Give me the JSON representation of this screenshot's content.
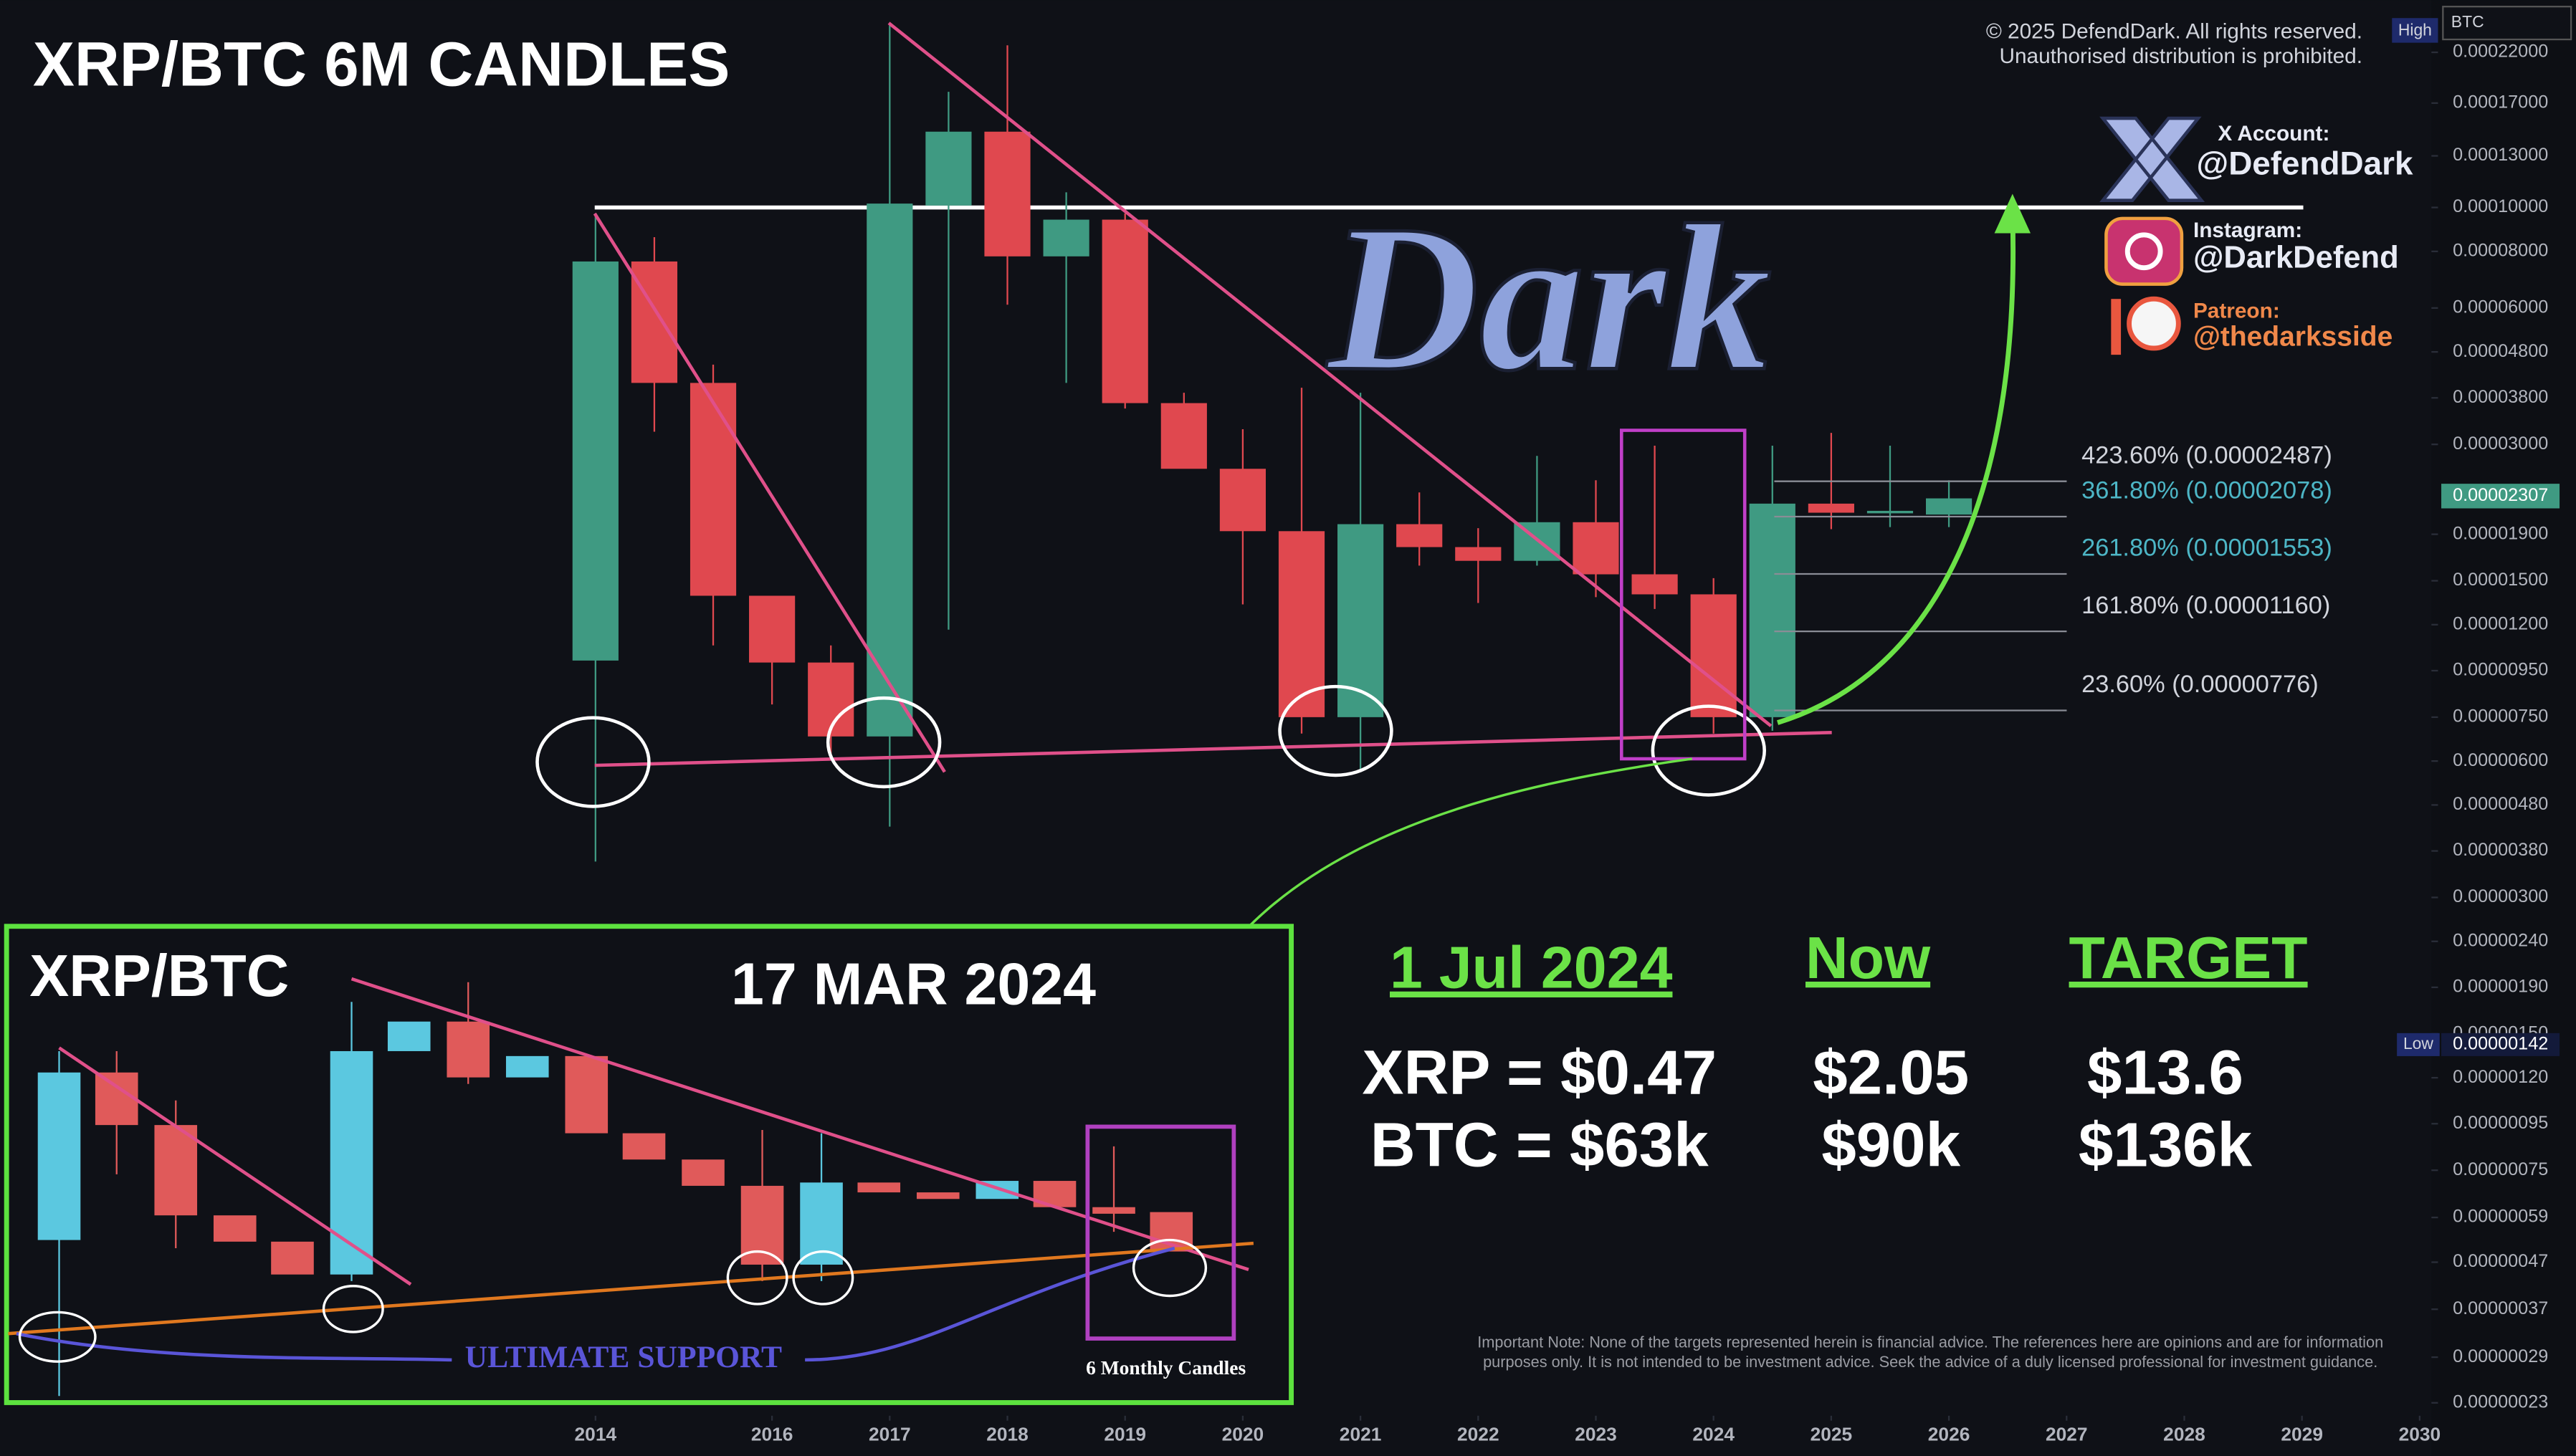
{
  "chart_data": {
    "type": "candlestick",
    "title": "XRP/BTC 6M CANDLES",
    "x": [
      2014.5,
      2015,
      2015.5,
      2016,
      2016.5,
      2017,
      2017.5,
      2018,
      2018.5,
      2019,
      2019.5,
      2020,
      2020.5,
      2021,
      2021.5,
      2022,
      2022.5,
      2023,
      2023.5,
      2024,
      2024.5,
      2025,
      2025.5,
      2026
    ],
    "open": [
      1e-05,
      7.6e-05,
      4.1e-05,
      1.39e-05,
      9.9e-06,
      6.8e-06,
      0.000101,
      0.000147,
      7.8e-05,
      9.4e-05,
      3.7e-05,
      2.65e-05,
      1.93e-05,
      7.5e-06,
      2e-05,
      1.78e-05,
      1.66e-05,
      2.02e-05,
      1.55e-05,
      1.4e-05,
      7.5e-06,
      2.22e-05,
      2.12e-05,
      2.1e-05
    ],
    "high": [
      9.7e-05,
      8.6e-05,
      4.5e-05,
      1.39e-05,
      1.08e-05,
      0.000253,
      0.00018,
      0.000228,
      0.000108,
      9.7e-05,
      3.9e-05,
      3.24e-05,
      4e-05,
      3.9e-05,
      2.35e-05,
      1.96e-05,
      2.83e-05,
      2.5e-05,
      2.98e-05,
      1.52e-05,
      2.98e-05,
      3.18e-05,
      2.98e-05,
      2.5e-05
    ],
    "low": [
      3.6e-06,
      3.2e-05,
      1.08e-05,
      8e-06,
      6.2e-06,
      4.3e-06,
      1.17e-05,
      6.1e-05,
      4.1e-05,
      3.6e-05,
      2.7e-05,
      1.33e-05,
      6.9e-06,
      5.7e-06,
      1.62e-05,
      1.34e-05,
      1.62e-05,
      1.38e-05,
      1.3e-05,
      6.9e-06,
      7e-06,
      1.95e-05,
      1.97e-05,
      1.97e-05
    ],
    "close": [
      7.6e-05,
      4.1e-05,
      1.39e-05,
      9.9e-06,
      6.8e-06,
      0.000102,
      0.000147,
      7.8e-05,
      9.4e-05,
      3.7e-05,
      2.65e-05,
      1.93e-05,
      7.5e-06,
      2e-05,
      1.78e-05,
      1.66e-05,
      2.02e-05,
      1.55e-05,
      1.4e-05,
      7.5e-06,
      2.22e-05,
      2.12e-05,
      2.14e-05,
      2.28e-05
    ],
    "up_color": "#3f9a82",
    "down_color": "#e0484f",
    "log_y": true,
    "grid": false,
    "xlim": [
      2009.44,
      2030.1
    ],
    "xticks": [
      {
        "value": 2014.5,
        "label": "2014"
      },
      2016,
      2017,
      2018,
      2019,
      2020,
      2021,
      2022,
      2023,
      2024,
      2025,
      2026,
      2027,
      2028,
      2029,
      2030
    ],
    "ylim": [
      2.19e-07,
      0.000287
    ],
    "yticks": [
      {
        "value": 0.00022,
        "label": "0.00022000"
      },
      {
        "value": 0.00017,
        "label": "0.00017000"
      },
      {
        "value": 0.00013,
        "label": "0.00013000"
      },
      {
        "value": 0.0001,
        "label": "0.00010000"
      },
      {
        "value": 8e-05,
        "label": "0.00008000"
      },
      {
        "value": 6e-05,
        "label": "0.00006000"
      },
      {
        "value": 4.8e-05,
        "label": "0.00004800"
      },
      {
        "value": 3.8e-05,
        "label": "0.00003800"
      },
      {
        "value": 3e-05,
        "label": "0.00003000"
      },
      {
        "value": 1.9e-05,
        "label": "0.00001900"
      },
      {
        "value": 1.5e-05,
        "label": "0.00001500"
      },
      {
        "value": 1.2e-05,
        "label": "0.00001200"
      },
      {
        "value": 9.5e-06,
        "label": "0.00000950"
      },
      {
        "value": 7.5e-06,
        "label": "0.00000750"
      },
      {
        "value": 6e-06,
        "label": "0.00000600"
      },
      {
        "value": 4.8e-06,
        "label": "0.00000480"
      },
      {
        "value": 3.8e-06,
        "label": "0.00000380"
      },
      {
        "value": 3e-06,
        "label": "0.00000300"
      },
      {
        "value": 2.4e-06,
        "label": "0.00000240"
      },
      {
        "value": 1.9e-06,
        "label": "0.00000190"
      },
      {
        "value": 1.5e-06,
        "label": "0.00000150"
      },
      {
        "value": 1.2e-06,
        "label": "0.00000120"
      },
      {
        "value": 9.5e-07,
        "label": "0.00000095"
      },
      {
        "value": 7.5e-07,
        "label": "0.00000075"
      },
      {
        "value": 5.9e-07,
        "label": "0.00000059"
      },
      {
        "value": 4.7e-07,
        "label": "0.00000047"
      },
      {
        "value": 3.7e-07,
        "label": "0.00000037"
      },
      {
        "value": 2.9e-07,
        "label": "0.00000029"
      },
      {
        "value": 2.3e-07,
        "label": "0.00000023"
      }
    ],
    "fib_levels": [
      {
        "value": 2.487e-05,
        "label": "423.60% (0.00002487)",
        "color": "#d1d4dc"
      },
      {
        "value": 2.078e-05,
        "label": "361.80% (0.00002078)",
        "color": "#4db6c6"
      },
      {
        "value": 1.553e-05,
        "label": "261.80% (0.00001553)",
        "color": "#4db6c6"
      },
      {
        "value": 1.16e-05,
        "label": "161.80% (0.00001160)",
        "color": "#d1d4dc"
      },
      {
        "value": 7.76e-06,
        "label": "23.60% (0.00000776)",
        "color": "#d1d4dc"
      }
    ],
    "resistance_level": 0.0001,
    "current_price": {
      "value": 2.307e-05,
      "label": "0.00002307"
    },
    "low_marker": {
      "tag": "Low",
      "value": 1.42e-06,
      "label": "0.00000142"
    },
    "high_tag": "High",
    "symbol": "BTC"
  },
  "watermark": "Dark",
  "copyright": [
    "© 2025 DefendDark. All rights reserved.",
    "Unauthorised distribution is prohibited."
  ],
  "socials": [
    {
      "label": "X Account:",
      "handle": "@DefendDark"
    },
    {
      "label": "Instagram:",
      "handle": "@DarkDefend"
    },
    {
      "label": "Patreon:",
      "handle": "@thedarksside"
    }
  ],
  "inset": {
    "title": "XRP/BTC",
    "date": "17 MAR 2024",
    "support_label": "ULTIMATE SUPPORT",
    "box_label": "6 Monthly Candles"
  },
  "comparison": {
    "headers": [
      "1 Jul 2024",
      "Now",
      "TARGET"
    ],
    "rows": [
      [
        "XRP = $0.47",
        "$2.05",
        "$13.6"
      ],
      [
        "BTC = $63k",
        "$90k",
        "$136k"
      ]
    ]
  },
  "disclaimer": [
    "Important Note: None of the targets represented herein is financial advice. The references here are opinions and are for information",
    "purposes only. It is not intended to be investment advice. Seek the advice of a duly licensed professional for investment guidance."
  ]
}
